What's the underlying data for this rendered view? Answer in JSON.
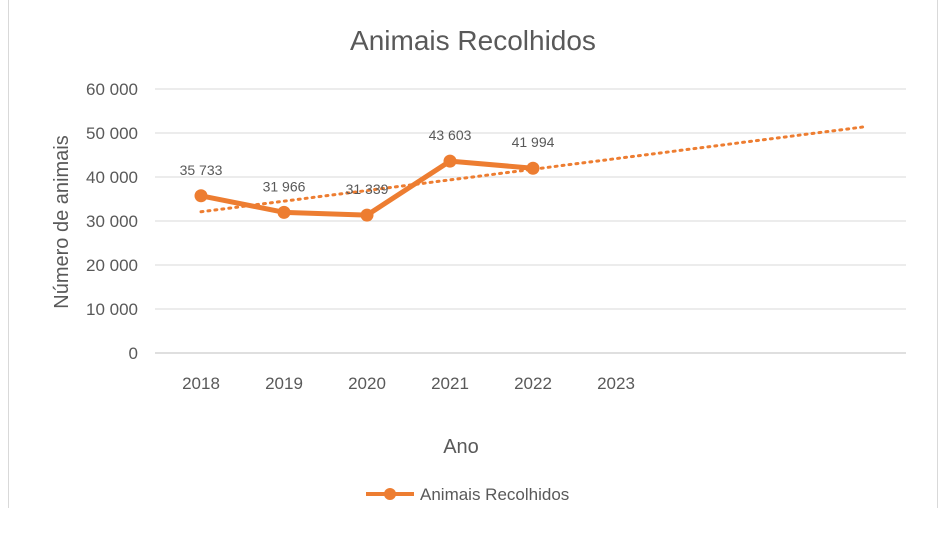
{
  "chart_data": {
    "type": "line",
    "title": "Animais Recolhidos",
    "xlabel": "Ano",
    "ylabel": "Número de animais",
    "categories": [
      "2018",
      "2019",
      "2020",
      "2021",
      "2022",
      "2023"
    ],
    "ylim": [
      0,
      60000
    ],
    "yticks": [
      0,
      10000,
      20000,
      30000,
      40000,
      50000,
      60000
    ],
    "ytick_labels": [
      "0",
      "10 000",
      "20 000",
      "30 000",
      "40 000",
      "50 000",
      "60 000"
    ],
    "grid": true,
    "legend": "bottom",
    "series": [
      {
        "name": "Animais Recolhidos",
        "color": "#ed7d31",
        "values": [
          35733,
          31966,
          31339,
          43603,
          41994,
          null
        ],
        "data_labels": [
          "35 733",
          "31 966",
          "31 339",
          "43 603",
          "41 994",
          ""
        ]
      }
    ],
    "trendline": {
      "type": "linear",
      "style": "dotted",
      "color": "#ed7d31"
    }
  }
}
